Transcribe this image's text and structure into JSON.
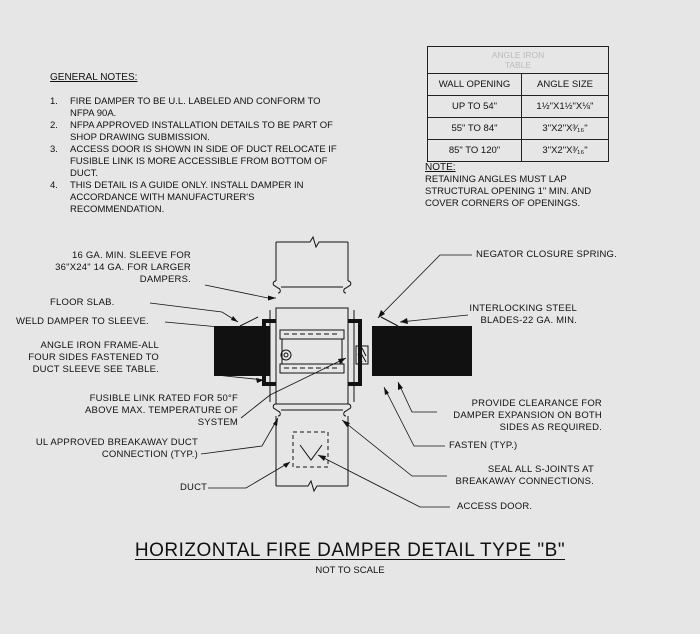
{
  "general_notes": {
    "title": "GENERAL NOTES:",
    "items": [
      {
        "num": "1.",
        "text": "FIRE DAMPER TO BE U.L. LABELED AND CONFORM TO NFPA 90A."
      },
      {
        "num": "2.",
        "text": "NFPA APPROVED INSTALLATION DETAILS TO BE PART OF SHOP DRAWING SUBMISSION."
      },
      {
        "num": "3.",
        "text": "ACCESS DOOR IS SHOWN IN SIDE OF DUCT RELOCATE IF FUSIBLE LINK IS MORE ACCESSIBLE FROM BOTTOM OF DUCT."
      },
      {
        "num": "4.",
        "text": "THIS DETAIL IS A GUIDE ONLY. INSTALL DAMPER IN ACCORDANCE WITH MANUFACTURER'S RECOMMENDATION."
      }
    ]
  },
  "angle_table": {
    "title": "ANGLE IRON\nTABLE",
    "headers": [
      "WALL OPENING",
      "ANGLE SIZE"
    ],
    "rows": [
      [
        "UP TO 54\"",
        "1½\"X1½\"X⅛\""
      ],
      [
        "55\" TO 84\"",
        "3\"X2\"X³⁄₁₆\""
      ],
      [
        "85\" TO 120\"",
        "3\"X2\"X³⁄₁₆\""
      ]
    ]
  },
  "note": {
    "label": "NOTE:",
    "text": "RETAINING ANGLES MUST LAP STRUCTURAL OPENING 1\" MIN. AND COVER CORNERS OF OPENINGS."
  },
  "callouts": {
    "sleeve": "16 GA. MIN. SLEEVE FOR\n36\"X24\" 14 GA. FOR LARGER\nDAMPERS.",
    "floor_slab": "FLOOR SLAB.",
    "weld": "WELD DAMPER TO SLEEVE.",
    "angle_iron": "ANGLE IRON FRAME-ALL\nFOUR SIDES FASTENED TO\nDUCT SLEEVE SEE TABLE.",
    "fusible_link": "FUSIBLE LINK RATED FOR 50°F\nABOVE MAX. TEMPERATURE OF\nSYSTEM",
    "breakaway": "UL APPROVED BREAKAWAY DUCT\nCONNECTION (TYP.)",
    "duct": "DUCT",
    "negator": "NEGATOR CLOSURE SPRING.",
    "blades": "INTERLOCKING STEEL\nBLADES-22 GA. MIN.",
    "clearance": "PROVIDE CLEARANCE FOR\nDAMPER EXPANSION ON BOTH\nSIDES AS REQUIRED.",
    "fasten": "FASTEN (TYP.)",
    "seal": "SEAL ALL S-JOINTS AT\nBREAKAWAY CONNECTIONS.",
    "access_door": "ACCESS DOOR."
  },
  "title": "HORIZONTAL FIRE DAMPER DETAIL TYPE \"B\"",
  "subtitle": "NOT TO SCALE"
}
